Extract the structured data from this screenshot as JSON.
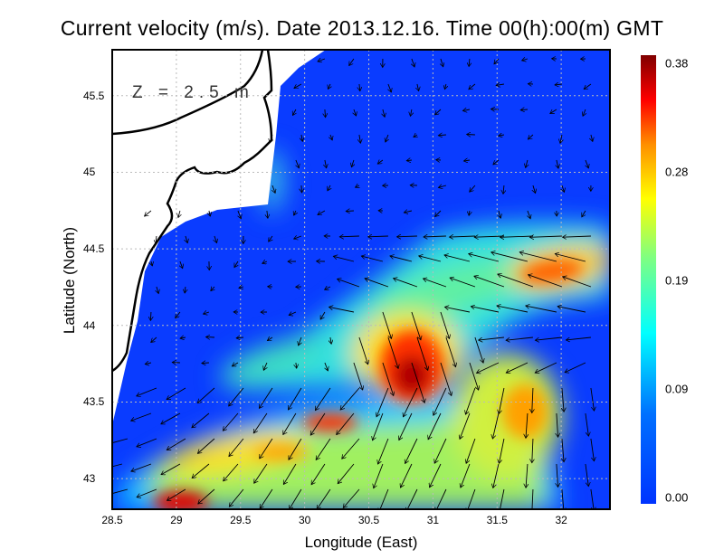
{
  "title": "Current velocity (m/s). Date 2013.12.16. Time 00(h):00(m) GMT",
  "depth_label": "Z = 2.5 m",
  "x_axis": {
    "label": "Longitude (East)",
    "ticks": [
      "28.5",
      "29",
      "29.5",
      "30",
      "30.5",
      "31",
      "31.5",
      "32"
    ],
    "range": [
      28.5,
      32.38
    ]
  },
  "y_axis": {
    "label": "Latitude (North)",
    "ticks": [
      "43",
      "43.5",
      "44",
      "44.5",
      "45",
      "45.5"
    ],
    "range": [
      42.8,
      45.8
    ]
  },
  "colorbar": {
    "ticks": [
      "0.38",
      "0.28",
      "0.19",
      "0.09",
      "0.00"
    ],
    "min": 0.0,
    "max": 0.38,
    "colors": [
      "#0033ff",
      "#0090ff",
      "#00ffff",
      "#80ff80",
      "#ffff00",
      "#ff9000",
      "#ff0000",
      "#800000"
    ]
  }
}
